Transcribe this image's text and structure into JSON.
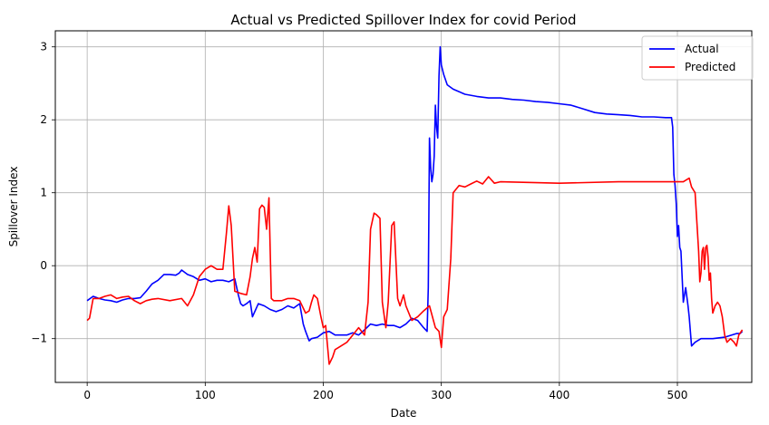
{
  "chart_data": {
    "type": "line",
    "title": "Actual vs Predicted Spillover Index for covid Period",
    "xlabel": "Date",
    "ylabel": "Spillover Index",
    "xlim": [
      -27,
      563
    ],
    "ylim": [
      -1.6,
      3.22
    ],
    "xticks": [
      0,
      100,
      200,
      300,
      400,
      500
    ],
    "yticks": [
      -1,
      0,
      1,
      2,
      3
    ],
    "grid": true,
    "legend_position": "top-right",
    "series": [
      {
        "name": "Actual",
        "color": "#0000ff",
        "x": [
          0,
          5,
          10,
          15,
          20,
          25,
          30,
          35,
          40,
          45,
          50,
          55,
          60,
          65,
          70,
          75,
          78,
          80,
          85,
          90,
          95,
          100,
          105,
          110,
          115,
          120,
          125,
          128,
          130,
          132,
          135,
          138,
          140,
          145,
          150,
          155,
          160,
          165,
          170,
          175,
          180,
          183,
          185,
          188,
          190,
          195,
          200,
          205,
          210,
          215,
          220,
          225,
          230,
          235,
          240,
          245,
          250,
          255,
          260,
          265,
          270,
          275,
          280,
          285,
          288,
          289,
          290,
          291,
          292,
          293,
          294,
          295,
          296,
          297,
          298,
          299,
          300,
          302,
          305,
          310,
          320,
          330,
          340,
          350,
          360,
          370,
          380,
          390,
          400,
          410,
          420,
          430,
          440,
          450,
          460,
          470,
          480,
          490,
          493,
          495,
          496,
          497,
          498,
          499,
          500,
          501,
          502,
          503,
          505,
          507,
          509,
          510,
          512,
          515,
          520,
          525,
          530,
          540,
          550,
          553,
          555
        ],
        "y": [
          -0.48,
          -0.42,
          -0.45,
          -0.47,
          -0.48,
          -0.5,
          -0.47,
          -0.45,
          -0.45,
          -0.44,
          -0.35,
          -0.25,
          -0.2,
          -0.12,
          -0.12,
          -0.13,
          -0.1,
          -0.06,
          -0.12,
          -0.15,
          -0.2,
          -0.18,
          -0.22,
          -0.2,
          -0.2,
          -0.22,
          -0.18,
          -0.4,
          -0.52,
          -0.55,
          -0.52,
          -0.48,
          -0.7,
          -0.52,
          -0.55,
          -0.6,
          -0.63,
          -0.6,
          -0.55,
          -0.58,
          -0.52,
          -0.8,
          -0.9,
          -1.03,
          -1.0,
          -0.98,
          -0.92,
          -0.9,
          -0.95,
          -0.95,
          -0.95,
          -0.92,
          -0.95,
          -0.88,
          -0.8,
          -0.82,
          -0.8,
          -0.82,
          -0.82,
          -0.85,
          -0.8,
          -0.72,
          -0.75,
          -0.85,
          -0.9,
          -0.3,
          1.75,
          1.35,
          1.15,
          1.25,
          1.5,
          2.2,
          1.9,
          1.75,
          2.6,
          3.0,
          2.75,
          2.62,
          2.48,
          2.42,
          2.35,
          2.32,
          2.3,
          2.3,
          2.28,
          2.27,
          2.25,
          2.24,
          2.22,
          2.2,
          2.15,
          2.1,
          2.08,
          2.07,
          2.06,
          2.04,
          2.04,
          2.03,
          2.03,
          2.03,
          1.9,
          1.25,
          1.1,
          0.85,
          0.4,
          0.55,
          0.25,
          0.2,
          -0.5,
          -0.3,
          -0.55,
          -0.7,
          -1.1,
          -1.05,
          -1.0,
          -1.0,
          -1.0,
          -0.98,
          -0.93,
          -0.93,
          -0.9
        ]
      },
      {
        "name": "Predicted",
        "color": "#ff0000",
        "x": [
          0,
          2,
          5,
          10,
          15,
          20,
          25,
          30,
          35,
          40,
          45,
          50,
          55,
          60,
          70,
          80,
          85,
          90,
          95,
          100,
          105,
          110,
          115,
          118,
          120,
          122,
          125,
          130,
          135,
          138,
          140,
          142,
          144,
          146,
          148,
          150,
          152,
          154,
          156,
          158,
          160,
          165,
          170,
          175,
          180,
          185,
          188,
          190,
          192,
          195,
          198,
          200,
          202,
          205,
          208,
          210,
          215,
          220,
          225,
          230,
          235,
          238,
          240,
          243,
          245,
          248,
          250,
          253,
          255,
          258,
          260,
          263,
          265,
          268,
          270,
          275,
          280,
          285,
          290,
          295,
          298,
          300,
          302,
          305,
          308,
          310,
          315,
          320,
          325,
          330,
          335,
          340,
          345,
          350,
          400,
          450,
          495,
          498,
          500,
          505,
          510,
          512,
          515,
          518,
          519,
          520,
          521,
          522,
          523,
          524,
          525,
          526,
          527,
          528,
          529,
          530,
          532,
          534,
          536,
          538,
          540,
          542,
          545,
          548,
          550,
          552,
          555
        ],
        "y": [
          -0.75,
          -0.72,
          -0.45,
          -0.45,
          -0.42,
          -0.4,
          -0.45,
          -0.43,
          -0.42,
          -0.48,
          -0.52,
          -0.48,
          -0.46,
          -0.45,
          -0.48,
          -0.45,
          -0.55,
          -0.4,
          -0.15,
          -0.05,
          0.0,
          -0.05,
          -0.05,
          0.45,
          0.82,
          0.55,
          -0.35,
          -0.38,
          -0.4,
          -0.15,
          0.1,
          0.25,
          0.05,
          0.78,
          0.83,
          0.8,
          0.5,
          0.93,
          -0.45,
          -0.48,
          -0.48,
          -0.48,
          -0.45,
          -0.45,
          -0.48,
          -0.65,
          -0.62,
          -0.5,
          -0.4,
          -0.45,
          -0.7,
          -0.85,
          -0.82,
          -1.35,
          -1.25,
          -1.15,
          -1.1,
          -1.05,
          -0.95,
          -0.85,
          -0.95,
          -0.5,
          0.5,
          0.72,
          0.7,
          0.65,
          -0.5,
          -0.85,
          -0.5,
          0.55,
          0.6,
          -0.45,
          -0.55,
          -0.4,
          -0.55,
          -0.75,
          -0.7,
          -0.62,
          -0.55,
          -0.85,
          -0.9,
          -1.12,
          -0.7,
          -0.6,
          0.1,
          1.0,
          1.1,
          1.08,
          1.12,
          1.16,
          1.12,
          1.22,
          1.13,
          1.15,
          1.13,
          1.15,
          1.15,
          1.15,
          1.15,
          1.15,
          1.2,
          1.08,
          1.0,
          0.2,
          -0.22,
          -0.1,
          0.2,
          0.25,
          -0.05,
          0.25,
          0.28,
          0.12,
          -0.2,
          -0.1,
          -0.45,
          -0.65,
          -0.55,
          -0.5,
          -0.55,
          -0.7,
          -0.95,
          -1.05,
          -1.0,
          -1.05,
          -1.1,
          -0.95,
          -0.88
        ]
      }
    ]
  }
}
